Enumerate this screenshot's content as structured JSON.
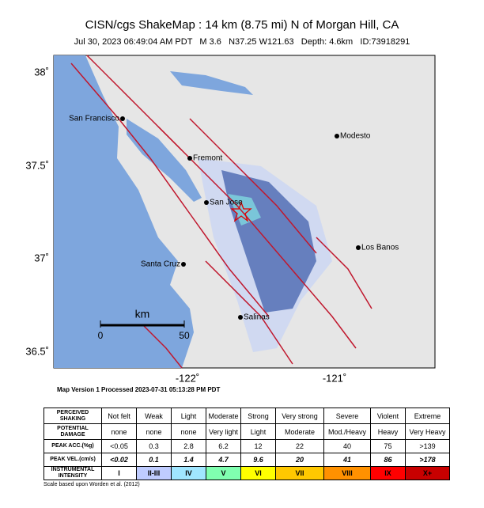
{
  "header": {
    "title": "CISN/cgs ShakeMap : 14  km (8.75 mi) N of Morgan Hill, CA",
    "subtitle": "Jul 30, 2023 06:49:04 AM PDT   M 3.6   N37.25 W121.63   Depth: 4.6km   ID:73918291"
  },
  "map": {
    "lat_labels": [
      "38˚",
      "37.5˚",
      "37˚",
      "36.5˚"
    ],
    "lon_labels": [
      "-122˚",
      "-121˚"
    ],
    "cities": [
      "San Francisco",
      "Fremont",
      "Modesto",
      "San Jose",
      "Los Banos",
      "Santa Cruz",
      "Salinas"
    ],
    "scale": {
      "unit": "km",
      "start": "0",
      "end": "50"
    }
  },
  "version_note": "Map Version 1 Processed 2023-07-31 05:13:28 PM PDT",
  "table": {
    "rows": [
      [
        "PERCEIVED\nSHAKING",
        "Not felt",
        "Weak",
        "Light",
        "Moderate",
        "Strong",
        "Very strong",
        "Severe",
        "Violent",
        "Extreme"
      ],
      [
        "POTENTIAL\nDAMAGE",
        "none",
        "none",
        "none",
        "Very light",
        "Light",
        "Moderate",
        "Mod./Heavy",
        "Heavy",
        "Very Heavy"
      ],
      [
        "PEAK ACC.(%g)",
        "<0.05",
        "0.3",
        "2.8",
        "6.2",
        "12",
        "22",
        "40",
        "75",
        ">139"
      ],
      [
        "PEAK VEL.(cm/s)",
        "<0.02",
        "0.1",
        "1.4",
        "4.7",
        "9.6",
        "20",
        "41",
        "86",
        ">178"
      ],
      [
        "INSTRUMENTAL\nINTENSITY",
        "I",
        "II-III",
        "IV",
        "V",
        "VI",
        "VII",
        "VIII",
        "IX",
        "X+"
      ]
    ],
    "intensity_colors": [
      "#ffffff",
      "#bfccff",
      "#a0e6ff",
      "#80ffb0",
      "#ffff00",
      "#ffc800",
      "#ff9100",
      "#ff0000",
      "#c80000"
    ]
  },
  "footer": "Scale based upon Worden et al. (2012)"
}
